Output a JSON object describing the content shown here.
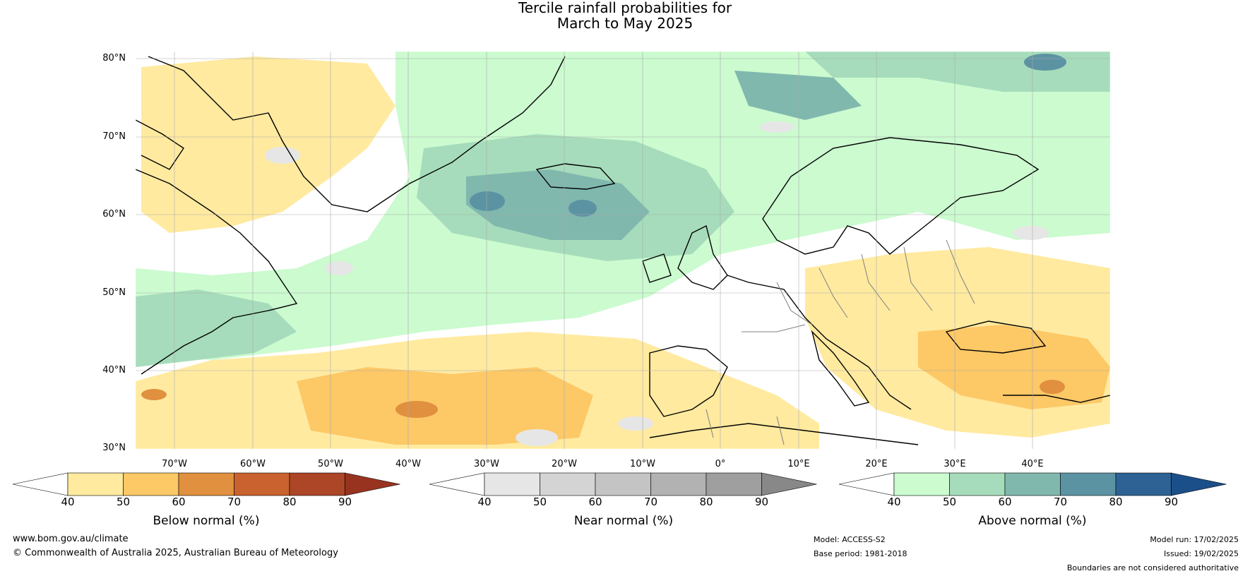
{
  "title": {
    "line1": "Tercile rainfall probabilities for",
    "line2": "March to May 2025"
  },
  "map": {
    "lat_labels": [
      "80°N",
      "70°N",
      "60°N",
      "50°N",
      "40°N",
      "30°N"
    ],
    "lon_labels": [
      "70°W",
      "60°W",
      "50°W",
      "40°W",
      "30°W",
      "20°W",
      "10°W",
      "0°",
      "10°E",
      "20°E",
      "30°E",
      "40°E"
    ],
    "lat_range": [
      30,
      80
    ],
    "lon_range": [
      -75,
      50
    ]
  },
  "colorbars": [
    {
      "label": "Below normal (%)",
      "ticks": [
        "40",
        "50",
        "60",
        "70",
        "80",
        "90"
      ],
      "colors": [
        "#ffffff",
        "#ffeaa0",
        "#fdc866",
        "#e0903f",
        "#c9622e",
        "#ad4527",
        "#97331f"
      ]
    },
    {
      "label": "Near normal (%)",
      "ticks": [
        "40",
        "50",
        "60",
        "70",
        "80",
        "90"
      ],
      "colors": [
        "#ffffff",
        "#e6e6e6",
        "#d4d4d4",
        "#c4c4c4",
        "#b2b2b2",
        "#9f9f9f",
        "#888888"
      ]
    },
    {
      "label": "Above normal (%)",
      "ticks": [
        "40",
        "50",
        "60",
        "70",
        "80",
        "90"
      ],
      "colors": [
        "#ffffff",
        "#cbfbcf",
        "#a6dcbb",
        "#80b8ae",
        "#5c93a3",
        "#2e6295",
        "#1b4f89"
      ]
    }
  ],
  "footer": {
    "website": "www.bom.gov.au/climate",
    "copyright": "© Commonwealth of Australia 2025, Australian Bureau of Meteorology",
    "model": "Model: ACCESS-S2",
    "base_period": "Base period: 1981-2018",
    "model_run": "Model run: 17/02/2025",
    "issued": "Issued: 19/02/2025",
    "disclaimer": "Boundaries are not considered authoritative"
  }
}
